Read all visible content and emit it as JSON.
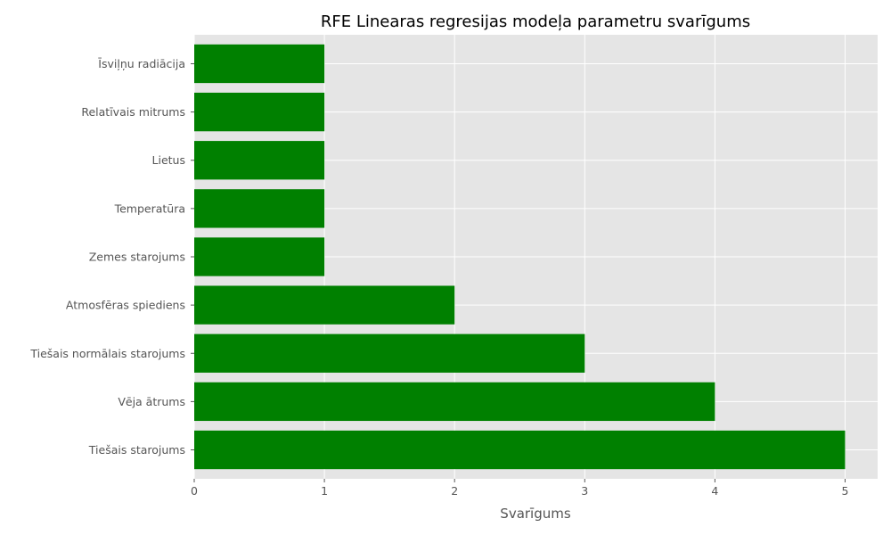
{
  "chart_data": {
    "type": "bar",
    "orientation": "horizontal",
    "title": "RFE Linearas regresijas modeļa parametru svarīgums",
    "xlabel": "Svarīgums",
    "ylabel": "",
    "categories": [
      "Tiešais starojums",
      "Vēja ātrums",
      "Tiešais normālais starojums",
      "Atmosfēras spiediens",
      "Zemes starojums",
      "Temperatūra",
      "Lietus",
      "Relatīvais mitrums",
      "Īsviļņu radiācija"
    ],
    "values": [
      5,
      4,
      3,
      2,
      1,
      1,
      1,
      1,
      1
    ],
    "xlim": [
      0,
      5.25
    ],
    "xticks": [
      "0",
      "1",
      "2",
      "3",
      "4",
      "5"
    ],
    "grid": true,
    "bar_color": "#008000",
    "background_color": "#e5e5e5"
  }
}
